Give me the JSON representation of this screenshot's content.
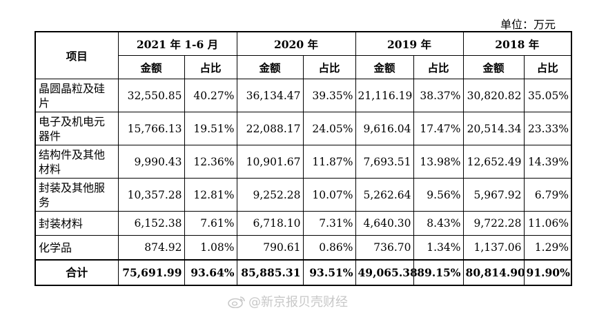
{
  "unit_label": "单位：万元",
  "table": {
    "project_header": "项目",
    "years": [
      "2021 年 1-6 月",
      "2020 年",
      "2019 年",
      "2018 年"
    ],
    "sub_headers": {
      "amount": "金额",
      "ratio": "占比"
    },
    "rows": [
      {
        "name": "晶圆晶粒及硅片",
        "values": [
          "32,550.85",
          "40.27%",
          "36,134.47",
          "39.35%",
          "21,116.19",
          "38.37%",
          "30,820.82",
          "35.05%"
        ]
      },
      {
        "name": "电子及机电元器件",
        "values": [
          "15,766.13",
          "19.51%",
          "22,088.17",
          "24.05%",
          "9,616.04",
          "17.47%",
          "20,514.34",
          "23.33%"
        ]
      },
      {
        "name": "结构件及其他材料",
        "values": [
          "9,990.43",
          "12.36%",
          "10,901.67",
          "11.87%",
          "7,693.51",
          "13.98%",
          "12,652.49",
          "14.39%"
        ]
      },
      {
        "name": "封装及其他服务",
        "values": [
          "10,357.28",
          "12.81%",
          "9,252.28",
          "10.07%",
          "5,262.64",
          "9.56%",
          "5,967.92",
          "6.79%"
        ]
      },
      {
        "name": "封装材料",
        "values": [
          "6,152.38",
          "7.61%",
          "6,718.10",
          "7.31%",
          "4,640.30",
          "8.43%",
          "9,722.28",
          "11.06%"
        ]
      },
      {
        "name": "化学品",
        "values": [
          "874.92",
          "1.08%",
          "790.61",
          "0.86%",
          "736.70",
          "1.34%",
          "1,137.06",
          "1.29%"
        ]
      }
    ],
    "total": {
      "name": "合计",
      "values": [
        "75,691.99",
        "93.64%",
        "85,885.31",
        "93.51%",
        "49,065.38",
        "89.15%",
        "80,814.90",
        "91.90%"
      ]
    }
  },
  "watermark": {
    "text": "@新京报贝壳财经",
    "icon": "weibo-icon"
  }
}
